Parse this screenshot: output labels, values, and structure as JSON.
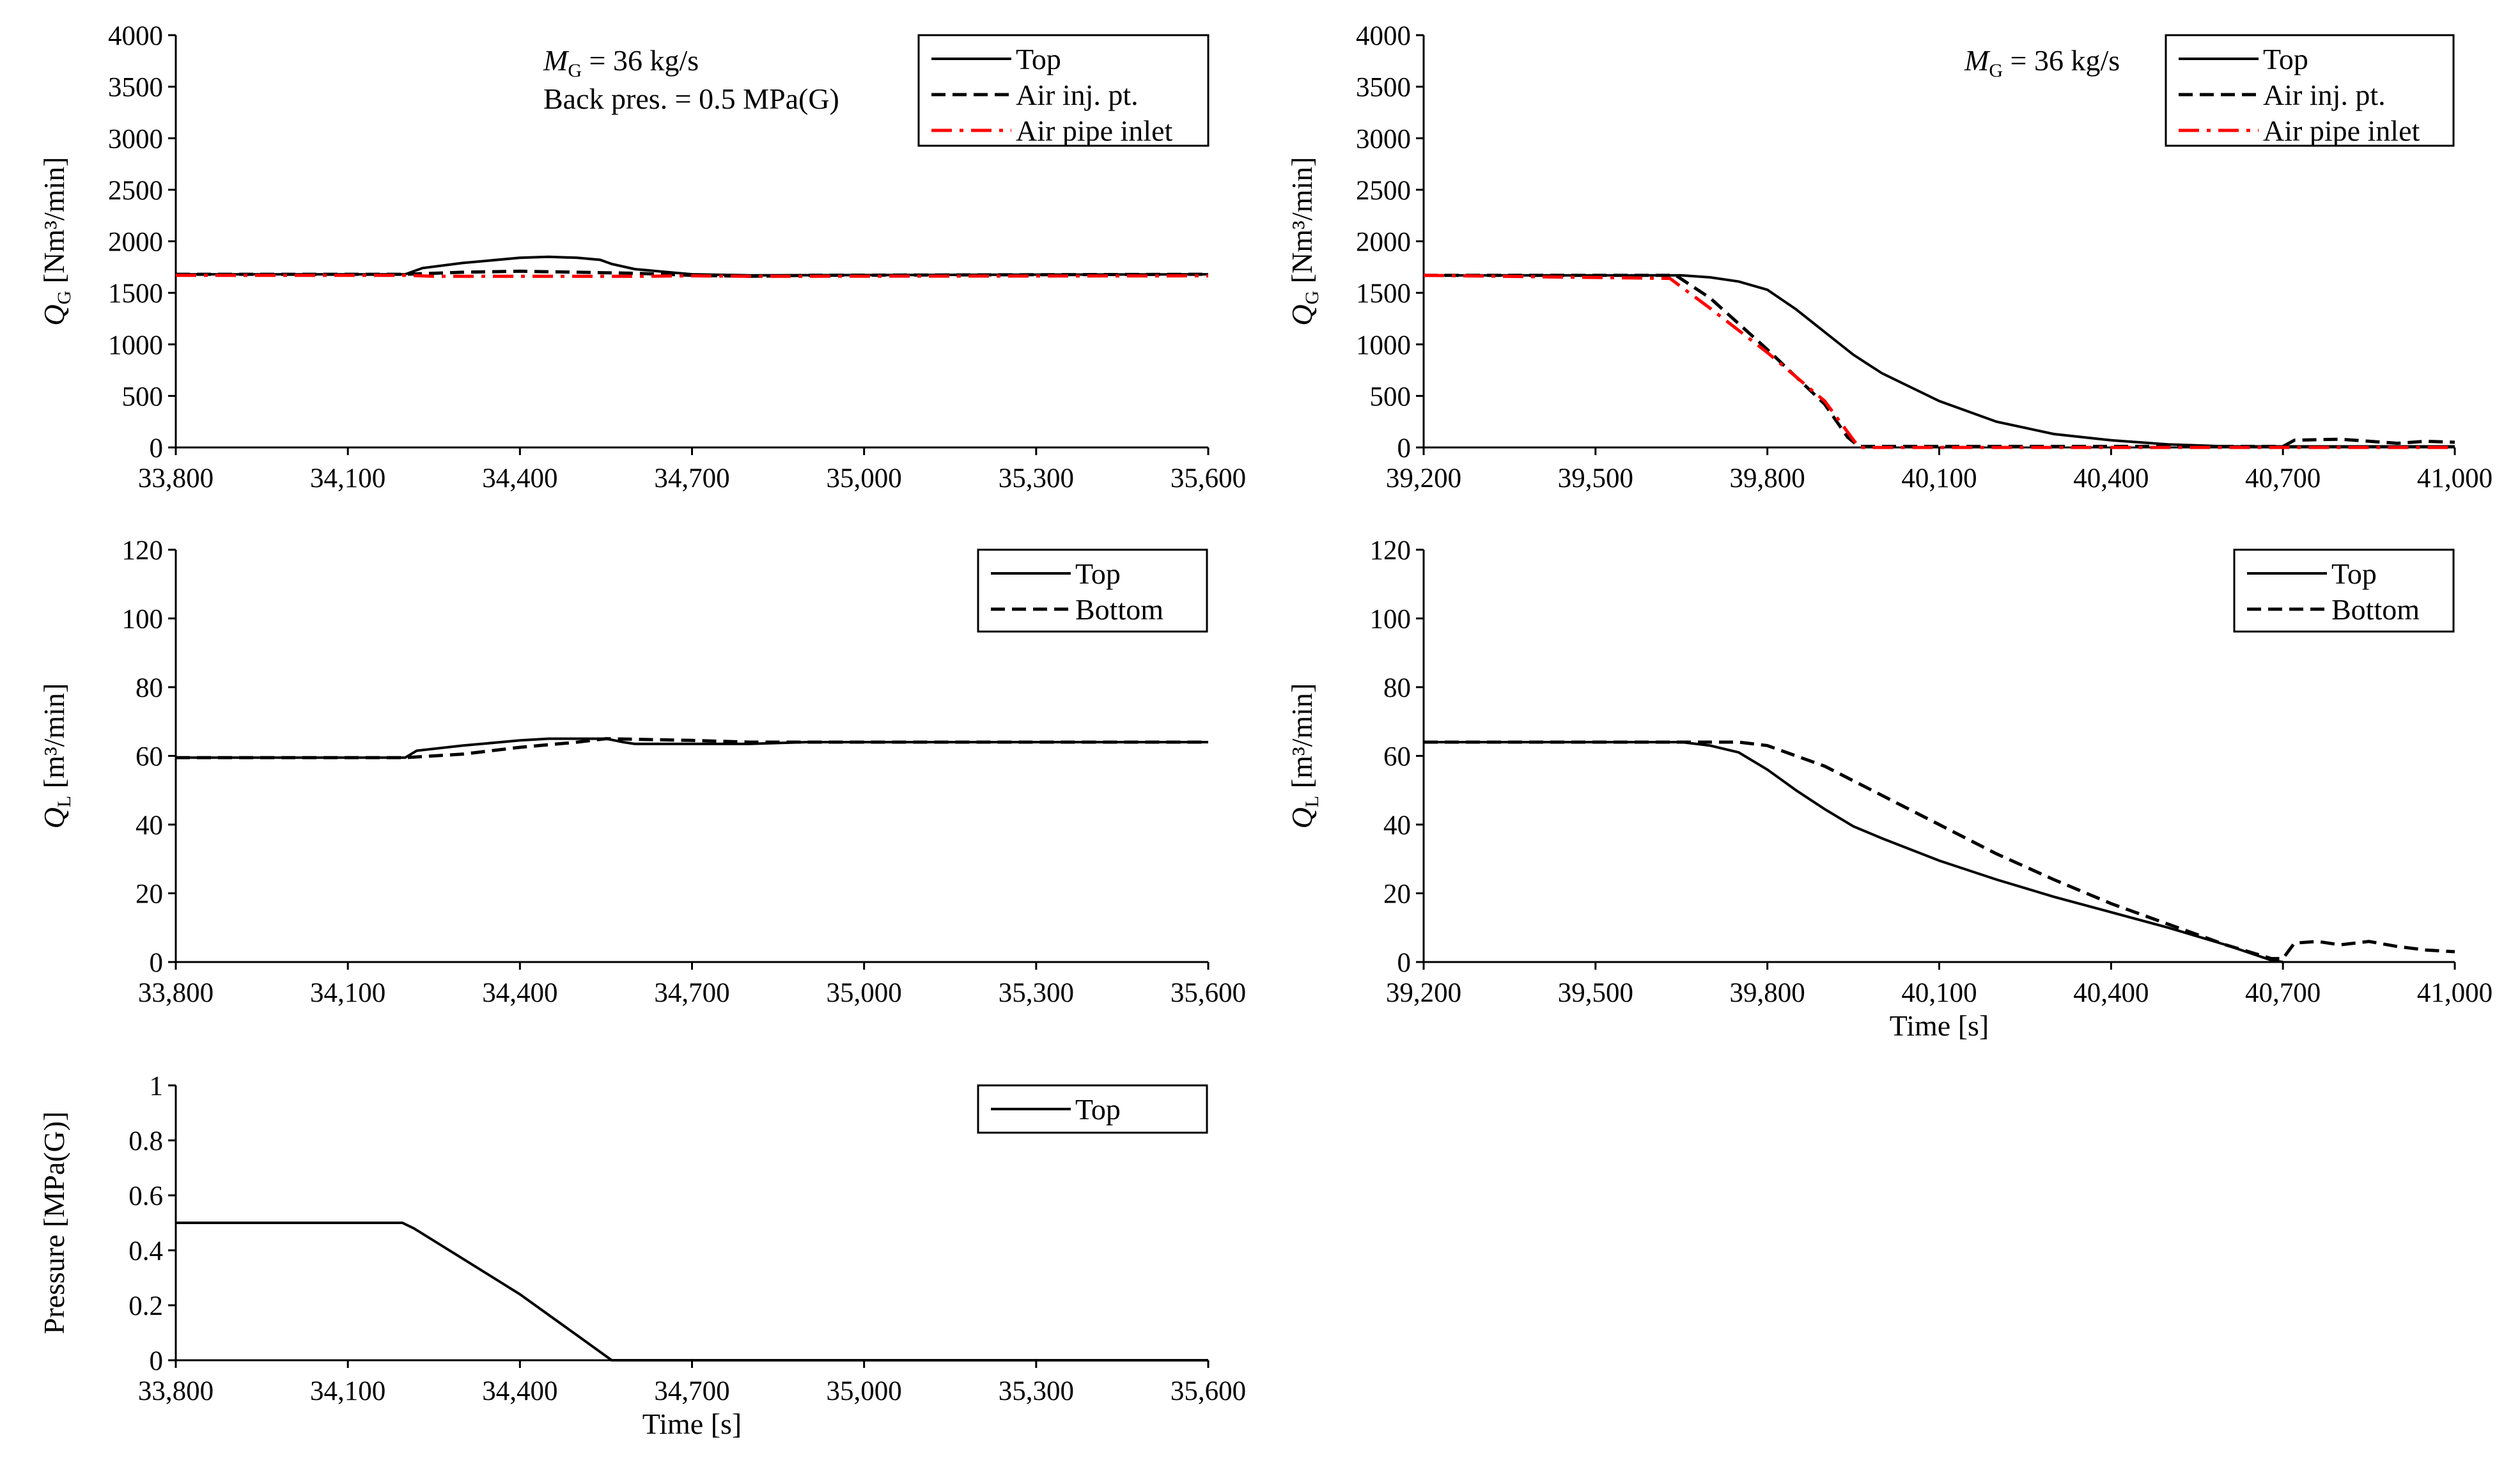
{
  "chart_data": [
    {
      "id": "qg_left",
      "type": "line",
      "ylabel": {
        "sym": "Q",
        "sub": "G",
        "rest": " [Nm³/min]"
      },
      "xlabel": "",
      "xlim": [
        33800,
        35600
      ],
      "ylim": [
        0,
        4000
      ],
      "xticks": [
        33800,
        34100,
        34400,
        34700,
        35000,
        35300,
        35600
      ],
      "xtick_labels": [
        "33,800",
        "34,100",
        "34,400",
        "34,700",
        "35,000",
        "35,300",
        "35,600"
      ],
      "yticks": [
        0,
        500,
        1000,
        1500,
        2000,
        2500,
        3000,
        3500,
        4000
      ],
      "ytick_labels": [
        "0",
        "500",
        "1000",
        "1500",
        "2000",
        "2500",
        "3000",
        "3500",
        "4000"
      ],
      "annotations": [
        {
          "sym": "M",
          "sub": "G",
          "rest": " = 36 kg/s"
        },
        {
          "text": "Back pres. = 0.5 MPa(G)"
        }
      ],
      "series": [
        {
          "name": "Top",
          "style": "solid",
          "color": "#000000",
          "x": [
            33800,
            34200,
            34230,
            34300,
            34400,
            34450,
            34500,
            34540,
            34560,
            34600,
            34700,
            34800,
            35600
          ],
          "y": [
            1680,
            1680,
            1740,
            1790,
            1840,
            1850,
            1840,
            1820,
            1780,
            1730,
            1680,
            1670,
            1680
          ]
        },
        {
          "name": "Air inj. pt.",
          "style": "dashed",
          "color": "#000000",
          "x": [
            33800,
            34200,
            34300,
            34400,
            34500,
            34600,
            34700,
            34800,
            34900,
            35600
          ],
          "y": [
            1680,
            1680,
            1700,
            1710,
            1700,
            1690,
            1670,
            1660,
            1670,
            1680
          ]
        },
        {
          "name": "Air pipe inlet",
          "style": "dashdot",
          "color": "#ff0000",
          "x": [
            33800,
            34200,
            34250,
            34600,
            34700,
            34800,
            35600
          ],
          "y": [
            1670,
            1670,
            1660,
            1660,
            1665,
            1660,
            1665
          ]
        }
      ]
    },
    {
      "id": "qg_right",
      "type": "line",
      "ylabel": {
        "sym": "Q",
        "sub": "G",
        "rest": " [Nm³/min]"
      },
      "xlabel": "",
      "xlim": [
        39200,
        41000
      ],
      "ylim": [
        0,
        4000
      ],
      "xticks": [
        39200,
        39500,
        39800,
        40100,
        40400,
        40700,
        41000
      ],
      "xtick_labels": [
        "39,200",
        "39,500",
        "39,800",
        "40,100",
        "40,400",
        "40,700",
        "41,000"
      ],
      "yticks": [
        0,
        500,
        1000,
        1500,
        2000,
        2500,
        3000,
        3500,
        4000
      ],
      "ytick_labels": [
        "0",
        "500",
        "1000",
        "1500",
        "2000",
        "2500",
        "3000",
        "3500",
        "4000"
      ],
      "annotations": [
        {
          "sym": "M",
          "sub": "G",
          "rest": " = 36 kg/s"
        }
      ],
      "series": [
        {
          "name": "Top",
          "style": "solid",
          "color": "#000000",
          "x": [
            39200,
            39650,
            39700,
            39750,
            39800,
            39850,
            39900,
            39950,
            40000,
            40100,
            40200,
            40300,
            40400,
            40500,
            40600,
            41000
          ],
          "y": [
            1670,
            1670,
            1650,
            1610,
            1530,
            1340,
            1120,
            900,
            720,
            450,
            250,
            130,
            70,
            30,
            10,
            10
          ]
        },
        {
          "name": "Air inj. pt.",
          "style": "dashed",
          "color": "#000000",
          "x": [
            39200,
            39640,
            39700,
            39800,
            39900,
            39940,
            39960,
            40700,
            40720,
            40800,
            40850,
            40900,
            40950,
            41000
          ],
          "y": [
            1670,
            1670,
            1450,
            950,
            420,
            100,
            10,
            10,
            70,
            80,
            60,
            40,
            60,
            50
          ]
        },
        {
          "name": "Air pipe inlet",
          "style": "dashdot",
          "color": "#ff0000",
          "x": [
            39200,
            39630,
            39700,
            39800,
            39900,
            39960,
            41000
          ],
          "y": [
            1670,
            1640,
            1350,
            920,
            450,
            0,
            0
          ]
        }
      ]
    },
    {
      "id": "ql_left",
      "type": "line",
      "ylabel": {
        "sym": "Q",
        "sub": "L",
        "rest": " [m³/min]"
      },
      "xlabel": "",
      "xlim": [
        33800,
        35600
      ],
      "ylim": [
        0,
        120
      ],
      "xticks": [
        33800,
        34100,
        34400,
        34700,
        35000,
        35300,
        35600
      ],
      "xtick_labels": [
        "33,800",
        "34,100",
        "34,400",
        "34,700",
        "35,000",
        "35,300",
        "35,600"
      ],
      "yticks": [
        0,
        20,
        40,
        60,
        80,
        100,
        120
      ],
      "ytick_labels": [
        "0",
        "20",
        "40",
        "60",
        "80",
        "100",
        "120"
      ],
      "annotations": [],
      "series": [
        {
          "name": "Top",
          "style": "solid",
          "color": "#000000",
          "x": [
            33800,
            34200,
            34220,
            34300,
            34400,
            34450,
            34550,
            34580,
            34600,
            34700,
            34800,
            34900,
            35600
          ],
          "y": [
            59.5,
            59.5,
            61.5,
            63,
            64.5,
            65,
            65,
            64,
            63.5,
            63.5,
            63.5,
            64,
            64
          ]
        },
        {
          "name": "Bottom",
          "style": "dashed",
          "color": "#000000",
          "x": [
            33800,
            34200,
            34300,
            34400,
            34500,
            34550,
            34700,
            34800,
            35000,
            35600
          ],
          "y": [
            59.5,
            59.5,
            60.5,
            62.5,
            64,
            65,
            64.5,
            64,
            64,
            64
          ]
        }
      ]
    },
    {
      "id": "ql_right",
      "type": "line",
      "ylabel": {
        "sym": "Q",
        "sub": "L",
        "rest": " [m³/min]"
      },
      "xlabel": "Time [s]",
      "xlim": [
        39200,
        41000
      ],
      "ylim": [
        0,
        120
      ],
      "xticks": [
        39200,
        39500,
        39800,
        40100,
        40400,
        40700,
        41000
      ],
      "xtick_labels": [
        "39,200",
        "39,500",
        "39,800",
        "40,100",
        "40,400",
        "40,700",
        "41,000"
      ],
      "yticks": [
        0,
        20,
        40,
        60,
        80,
        100,
        120
      ],
      "ytick_labels": [
        "0",
        "20",
        "40",
        "60",
        "80",
        "100",
        "120"
      ],
      "annotations": [],
      "series": [
        {
          "name": "Top",
          "style": "solid",
          "color": "#000000",
          "x": [
            39200,
            39650,
            39700,
            39750,
            39800,
            39850,
            39900,
            39950,
            40000,
            40100,
            40200,
            40300,
            40400,
            40500,
            40600,
            40680,
            40700
          ],
          "y": [
            64,
            64,
            63,
            61,
            56,
            50,
            44.5,
            39.5,
            36,
            29.5,
            24,
            19,
            14.5,
            10,
            5,
            0.5,
            0
          ]
        },
        {
          "name": "Bottom",
          "style": "dashed",
          "color": "#000000",
          "x": [
            39200,
            39750,
            39800,
            39900,
            40000,
            40100,
            40200,
            40300,
            40400,
            40500,
            40600,
            40680,
            40700,
            40720,
            40760,
            40800,
            40850,
            40900,
            40950,
            41000
          ],
          "y": [
            64,
            64,
            63,
            57,
            48.5,
            40,
            31.5,
            24,
            17,
            11,
            5,
            1,
            1,
            5.5,
            6,
            5,
            6,
            4.5,
            3.5,
            3
          ]
        }
      ]
    },
    {
      "id": "pressure_left",
      "type": "line",
      "ylabel": {
        "text": "Pressure [MPa(G)]"
      },
      "xlabel": "Time [s]",
      "xlim": [
        33800,
        35600
      ],
      "ylim": [
        0,
        1
      ],
      "xticks": [
        33800,
        34100,
        34400,
        34700,
        35000,
        35300,
        35600
      ],
      "xtick_labels": [
        "33,800",
        "34,100",
        "34,400",
        "34,700",
        "35,000",
        "35,300",
        "35,600"
      ],
      "yticks": [
        0,
        0.2,
        0.4,
        0.6,
        0.8,
        1
      ],
      "ytick_labels": [
        "0",
        "0.2",
        "0.4",
        "0.6",
        "0.8",
        "1"
      ],
      "annotations": [],
      "series": [
        {
          "name": "Top",
          "style": "solid",
          "color": "#000000",
          "x": [
            33800,
            34195,
            34215,
            34300,
            34400,
            34500,
            34560,
            35600
          ],
          "y": [
            0.5,
            0.5,
            0.48,
            0.37,
            0.24,
            0.09,
            0,
            0
          ]
        }
      ]
    }
  ]
}
